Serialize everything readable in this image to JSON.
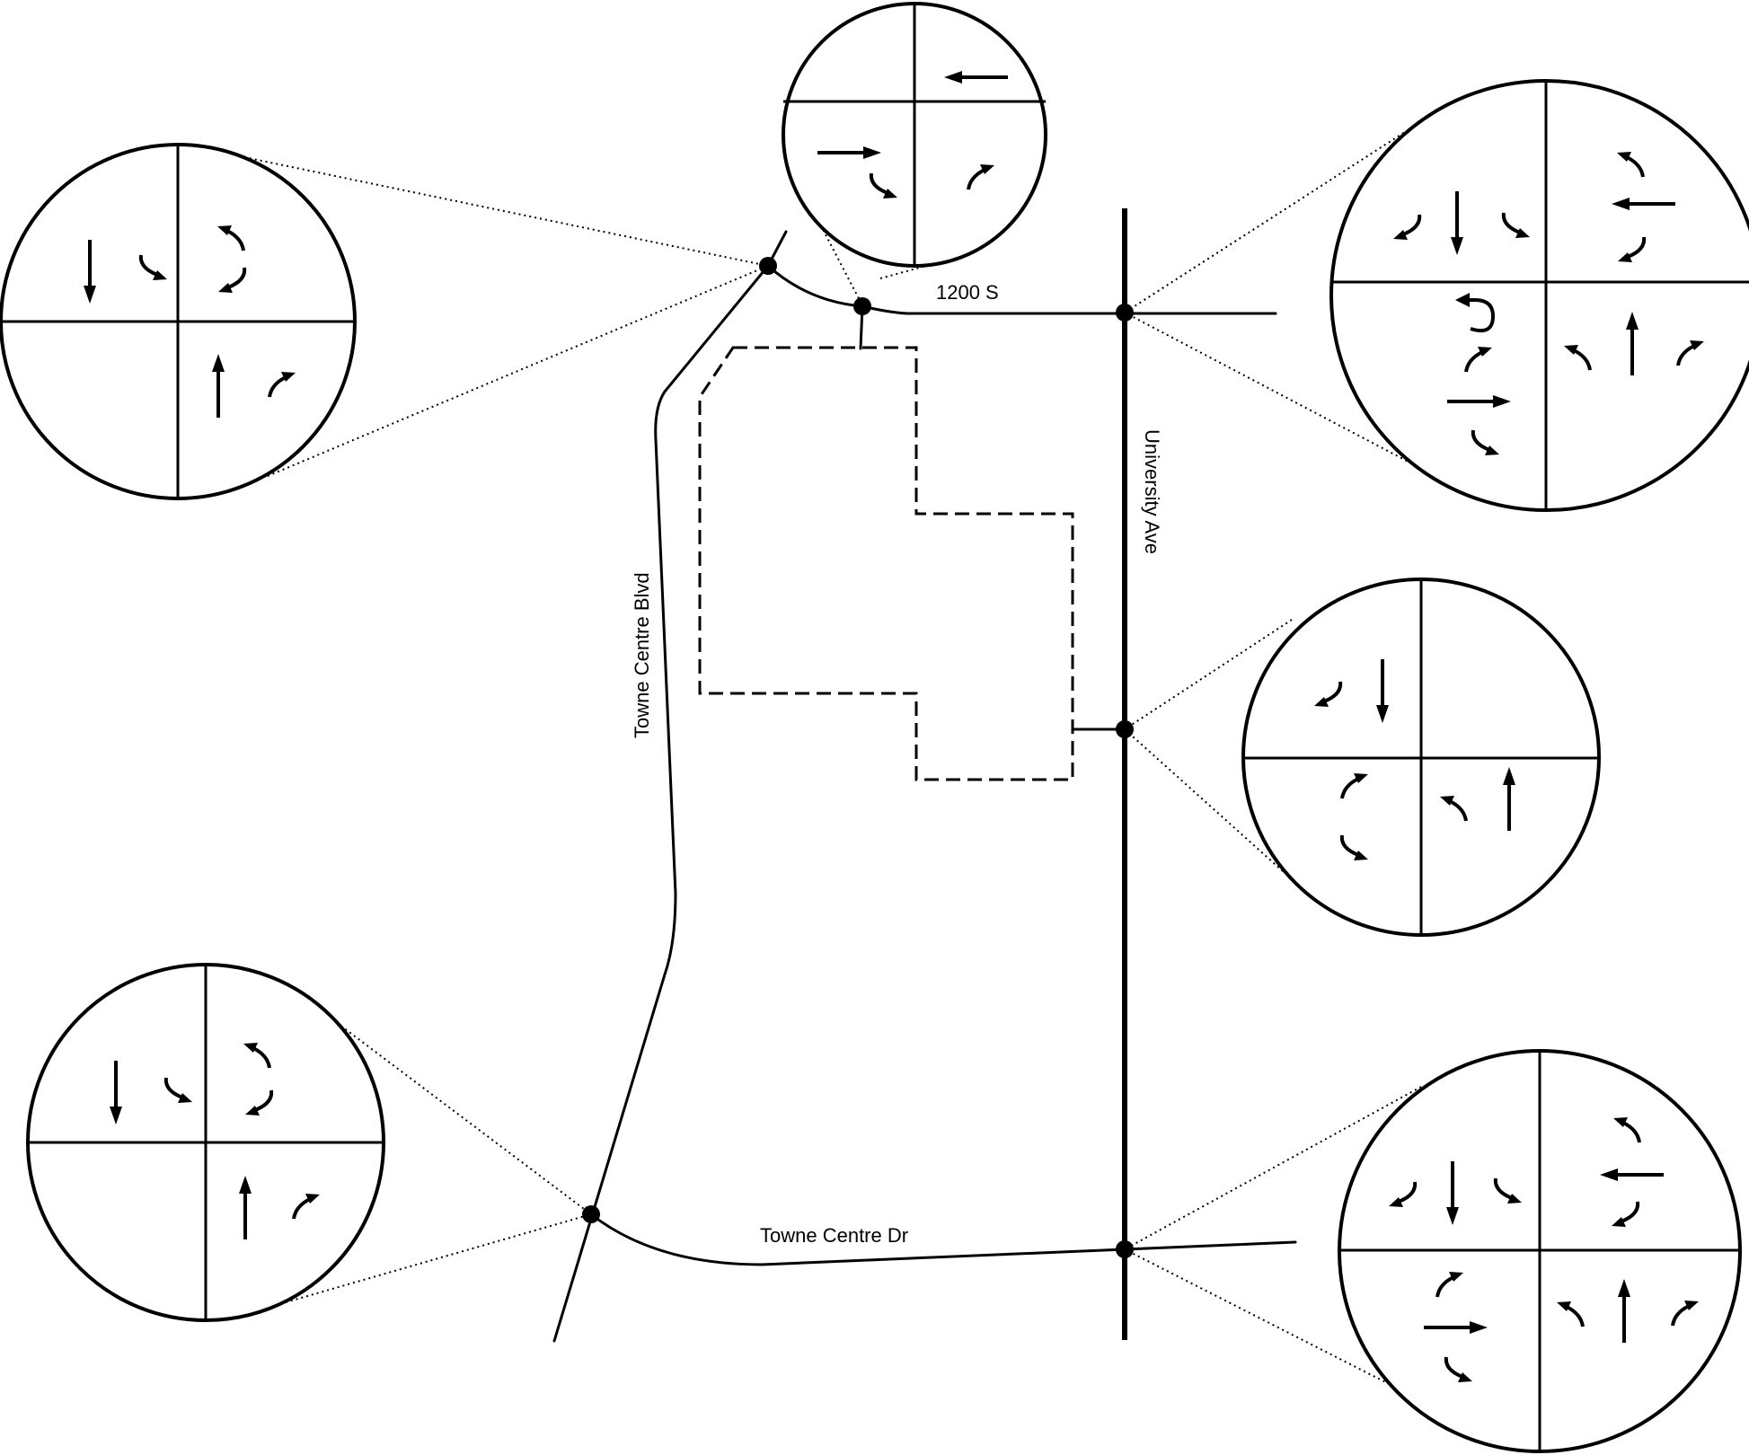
{
  "roads": {
    "street_1200s": "1200 S",
    "university_ave": "University Ave",
    "towne_centre_blvd": "Towne Centre Blvd",
    "towne_centre_dr": "Towne Centre Dr"
  },
  "intersections": [
    {
      "name": "towne-centre-blvd-at-1200s-north",
      "movements": {
        "sb": [
          "thru",
          "left"
        ],
        "wb": [
          "right",
          "left"
        ],
        "nb": [
          "thru",
          "right"
        ]
      }
    },
    {
      "name": "1200s-site-access",
      "movements": {
        "wb": [
          "thru"
        ],
        "eb": [
          "thru",
          "right"
        ],
        "nb": [
          "right"
        ]
      }
    },
    {
      "name": "university-ave-at-1200s",
      "movements": {
        "sb": [
          "left",
          "thru",
          "right"
        ],
        "wb": [
          "right",
          "thru",
          "left"
        ],
        "eb": [
          "u-turn",
          "left",
          "thru",
          "right"
        ],
        "nb": [
          "left",
          "thru",
          "right"
        ]
      }
    },
    {
      "name": "university-ave-at-site-driveway",
      "movements": {
        "sb": [
          "right",
          "thru"
        ],
        "eb": [
          "left",
          "right"
        ],
        "nb": [
          "left",
          "thru"
        ]
      }
    },
    {
      "name": "towne-centre-blvd-at-towne-centre-dr",
      "movements": {
        "sb": [
          "thru",
          "left"
        ],
        "wb": [
          "right",
          "left"
        ],
        "nb": [
          "thru",
          "right"
        ]
      }
    },
    {
      "name": "university-ave-at-towne-centre-dr",
      "movements": {
        "sb": [
          "right",
          "thru",
          "left"
        ],
        "wb": [
          "right",
          "thru",
          "left"
        ],
        "eb": [
          "left",
          "thru",
          "right"
        ],
        "nb": [
          "left",
          "thru",
          "right"
        ]
      }
    }
  ]
}
